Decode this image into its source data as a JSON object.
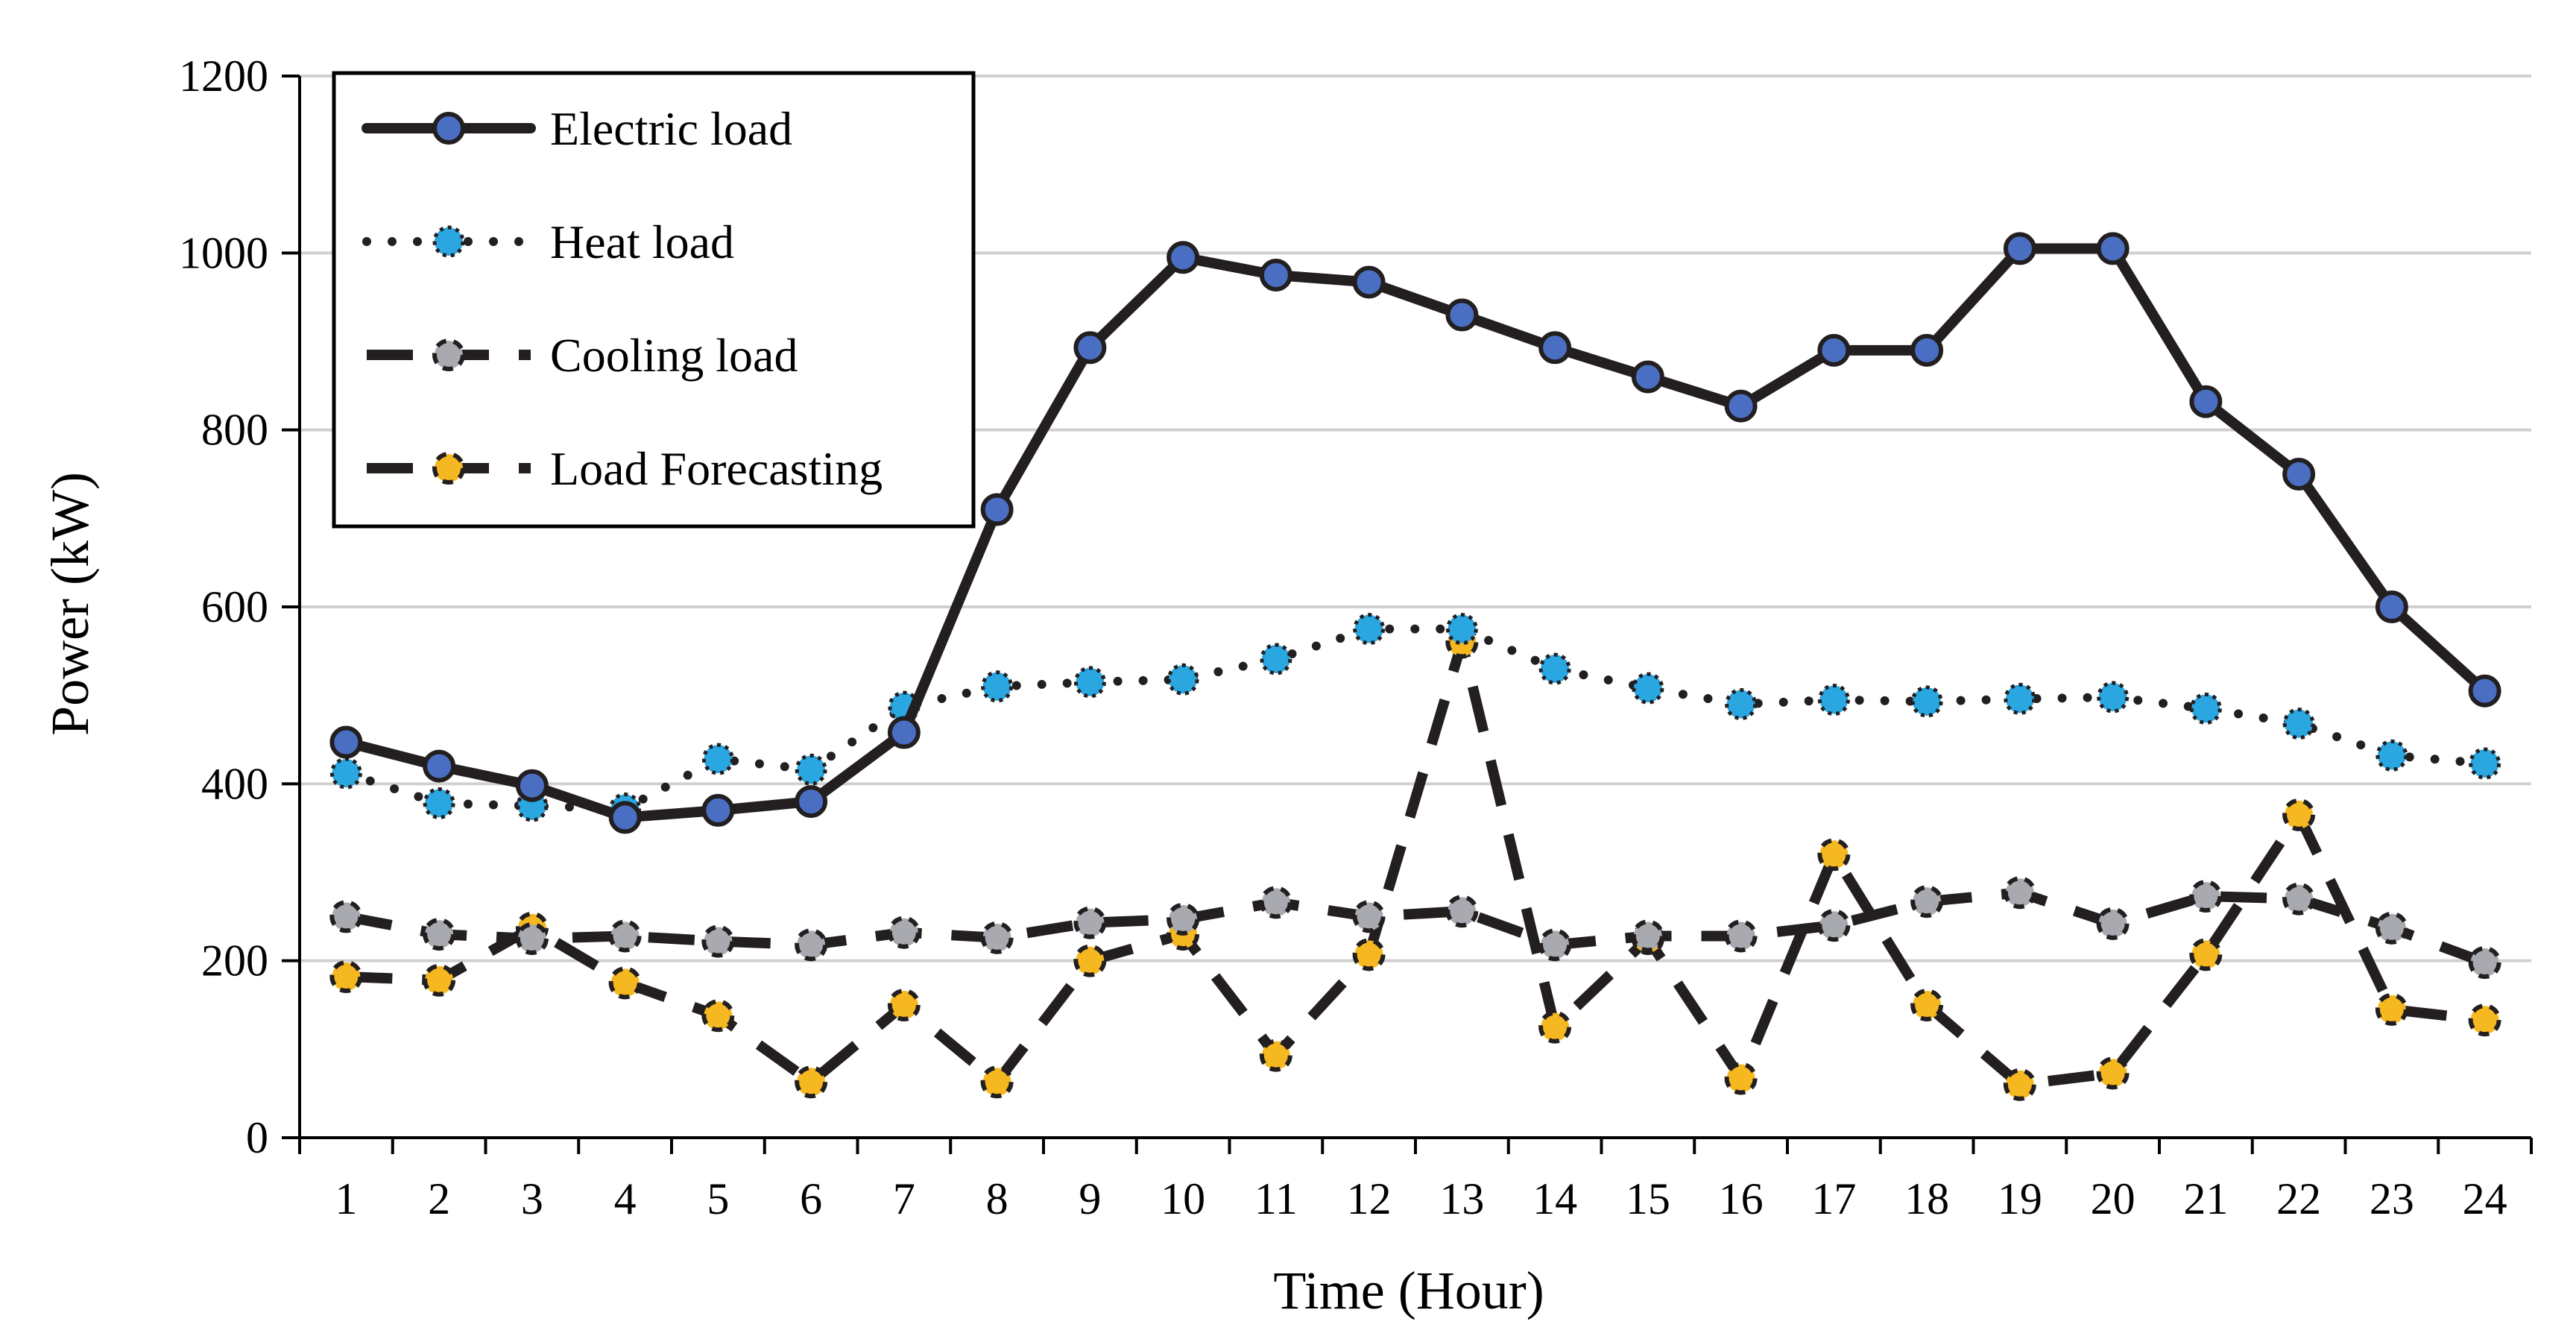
{
  "chart_data": {
    "type": "line",
    "title": "",
    "xlabel": "Time (Hour)",
    "ylabel": "Power (kW)",
    "ylim": [
      0,
      1200
    ],
    "yticks": [
      0,
      200,
      400,
      600,
      800,
      1000,
      1200
    ],
    "grid": true,
    "legend_position": "top-left",
    "categories": [
      "1",
      "2",
      "3",
      "4",
      "5",
      "6",
      "7",
      "8",
      "9",
      "10",
      "11",
      "12",
      "13",
      "14",
      "15",
      "16",
      "17",
      "18",
      "19",
      "20",
      "21",
      "22",
      "23",
      "24"
    ],
    "series": [
      {
        "name": "Electric load",
        "style": "solid",
        "marker_color": "#4a6fc2",
        "values": [
          447,
          420,
          398,
          362,
          370,
          380,
          458,
          710,
          893,
          995,
          975,
          967,
          930,
          893,
          860,
          827,
          890,
          890,
          1005,
          1005,
          832,
          750,
          600,
          505
        ]
      },
      {
        "name": "Heat load",
        "style": "dotted",
        "marker_color": "#2aa6e0",
        "values": [
          412,
          378,
          375,
          372,
          428,
          416,
          487,
          510,
          515,
          518,
          541,
          575,
          575,
          530,
          508,
          490,
          495,
          493,
          496,
          498,
          485,
          468,
          432,
          423
        ]
      },
      {
        "name": "Cooling load",
        "style": "dashed",
        "marker_color": "#a9a9b0",
        "values": [
          250,
          230,
          225,
          228,
          222,
          218,
          232,
          226,
          243,
          247,
          266,
          250,
          256,
          218,
          228,
          228,
          240,
          267,
          277,
          242,
          273,
          270,
          237,
          198
        ]
      },
      {
        "name": "Load Forecasting",
        "style": "dashed",
        "marker_color": "#f5b820",
        "values": [
          182,
          178,
          237,
          175,
          138,
          63,
          150,
          63,
          200,
          230,
          93,
          207,
          560,
          125,
          225,
          67,
          320,
          150,
          60,
          73,
          207,
          365,
          145,
          133
        ]
      }
    ]
  }
}
